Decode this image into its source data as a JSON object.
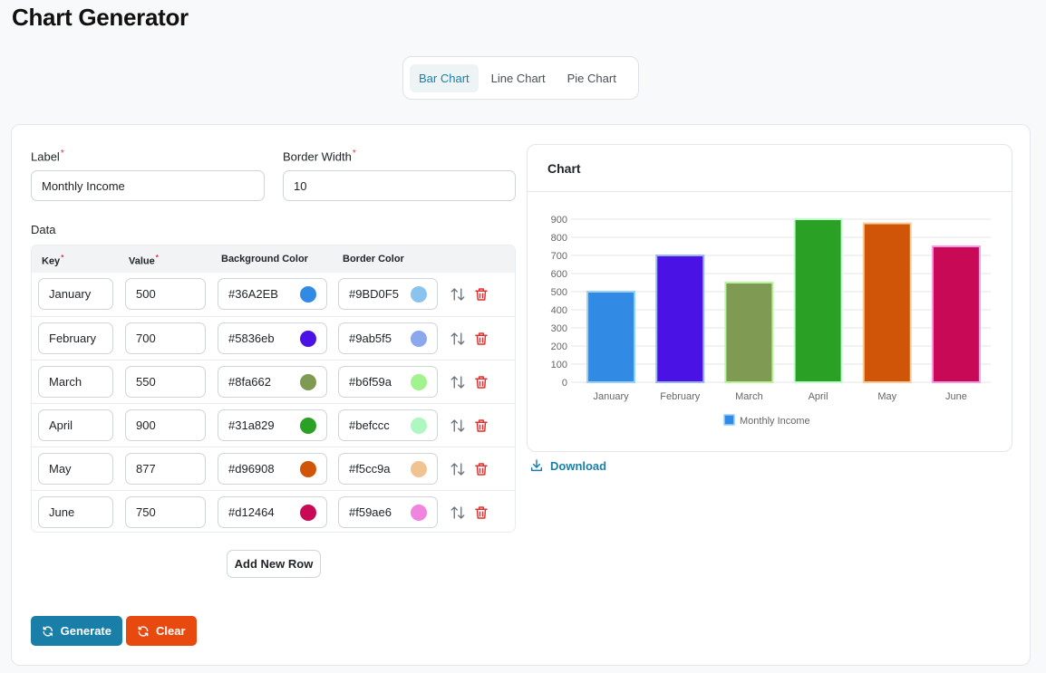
{
  "app": {
    "title": "Chart Generator"
  },
  "tabs": [
    {
      "label": "Bar Chart",
      "active": true
    },
    {
      "label": "Line Chart",
      "active": false
    },
    {
      "label": "Pie Chart",
      "active": false
    }
  ],
  "form": {
    "label_title": "Label",
    "label_value": "Monthly Income",
    "border_width_title": "Border Width",
    "border_width_value": "10",
    "data_title": "Data",
    "required_mark": "*"
  },
  "table": {
    "headers": {
      "key": "Key",
      "value": "Value",
      "bg": "Background Color",
      "border": "Border Color"
    },
    "rows": [
      {
        "key": "January",
        "value": "500",
        "bg": "#36A2EB",
        "border": "#9BD0F5"
      },
      {
        "key": "February",
        "value": "700",
        "bg": "#5836eb",
        "border": "#9ab5f5"
      },
      {
        "key": "March",
        "value": "550",
        "bg": "#8fa662",
        "border": "#b6f59a"
      },
      {
        "key": "April",
        "value": "900",
        "bg": "#31a829",
        "border": "#befccc"
      },
      {
        "key": "May",
        "value": "877",
        "bg": "#d96908",
        "border": "#f5cc9a"
      },
      {
        "key": "June",
        "value": "750",
        "bg": "#d12464",
        "border": "#f59ae6"
      }
    ],
    "swatches": {
      "bg": [
        "#318be5",
        "#4a12e4",
        "#7f9a52",
        "#2aa025",
        "#d05509",
        "#c80a56"
      ],
      "border": [
        "#8bc3ef",
        "#8ba7ee",
        "#a1f38d",
        "#adf7c0",
        "#f0c490",
        "#ef85df"
      ]
    },
    "add_row_label": "Add New Row"
  },
  "actions": {
    "generate_label": "Generate",
    "clear_label": "Clear",
    "download_label": "Download"
  },
  "chart": {
    "header_title": "Chart"
  },
  "chart_data": {
    "type": "bar",
    "categories": [
      "January",
      "February",
      "March",
      "April",
      "May",
      "June"
    ],
    "series": [
      {
        "name": "Monthly Income",
        "values": [
          500,
          700,
          550,
          900,
          877,
          750
        ]
      }
    ],
    "bar_colors": [
      "#318be5",
      "#4a12e4",
      "#7f9a52",
      "#2aa025",
      "#d05509",
      "#c80a56"
    ],
    "border_colors": [
      "#9BD0F5",
      "#9ab5f5",
      "#b6f59a",
      "#befccc",
      "#f5cc9a",
      "#f59ae6"
    ],
    "yticks": [
      0,
      100,
      200,
      300,
      400,
      500,
      600,
      700,
      800,
      900
    ],
    "ylim": [
      0,
      900
    ],
    "grid": true,
    "legend": "bottom"
  },
  "colors": {
    "accent": "#1a7fa8",
    "danger": "#e03131",
    "clear": "#e8490f"
  }
}
